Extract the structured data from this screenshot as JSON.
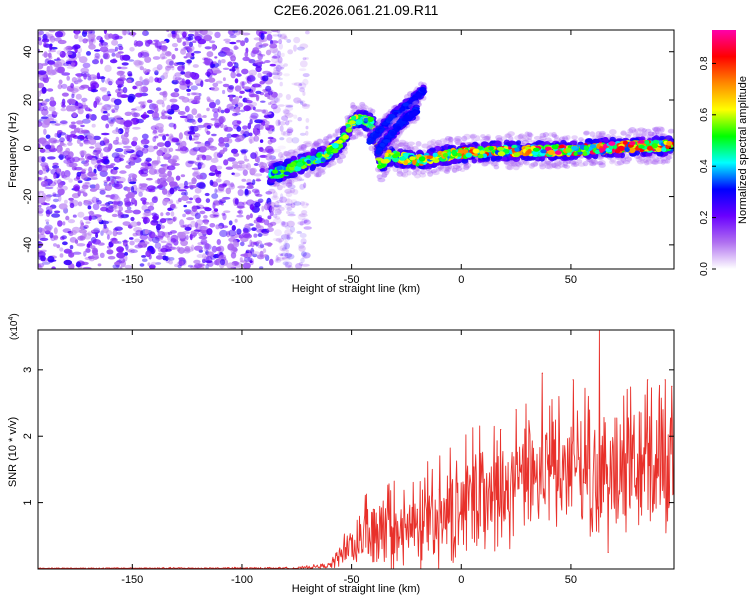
{
  "title": "C2E6.2026.061.21.09.R11",
  "chart_data": [
    {
      "type": "heatmap",
      "name": "spectrogram",
      "xlabel": "Height of straight line (km)",
      "ylabel": "Frequency (Hz)",
      "xlim": [
        -193,
        97
      ],
      "ylim": [
        -50,
        49
      ],
      "xticks": [
        -150,
        -100,
        -50,
        0,
        50
      ],
      "yticks": [
        -40,
        -20,
        0,
        20,
        40
      ],
      "xtick_labels": [
        "-150",
        "-100",
        "-50",
        "0",
        "50"
      ],
      "ytick_labels": [
        "-40",
        "-20",
        "0",
        "20",
        "40"
      ],
      "colorbar": {
        "label": "Normalized spectral amplitude",
        "range": [
          0,
          0.93
        ],
        "ticks": [
          0,
          0.2,
          0.4,
          0.6,
          0.8
        ],
        "tick_labels": [
          "0.0",
          "0.2",
          "0.4",
          "0.6",
          "0.8"
        ],
        "stops": [
          "#ffffff",
          "#b070f0",
          "#6a00ff",
          "#0000ff",
          "#00ffff",
          "#00ff00",
          "#ffff00",
          "#ff8800",
          "#ff0000",
          "#ff00aa"
        ]
      },
      "noise_region_x": [
        -193,
        -70
      ],
      "signal_track": [
        {
          "x": -87,
          "y": -11
        },
        {
          "x": -80,
          "y": -9
        },
        {
          "x": -72,
          "y": -6
        },
        {
          "x": -62,
          "y": -3
        },
        {
          "x": -55,
          "y": 2
        },
        {
          "x": -50,
          "y": 11
        },
        {
          "x": -45,
          "y": 12
        },
        {
          "x": -40,
          "y": 10
        },
        {
          "x": -37,
          "y": -7
        },
        {
          "x": -33,
          "y": -3
        },
        {
          "x": -20,
          "y": -5
        },
        {
          "x": 0,
          "y": -2
        },
        {
          "x": 20,
          "y": -1
        },
        {
          "x": 50,
          "y": -1
        },
        {
          "x": 80,
          "y": 1
        },
        {
          "x": 96,
          "y": 1
        }
      ],
      "branch_tracks": [
        [
          {
            "x": -42,
            "y": 3
          },
          {
            "x": -32,
            "y": 12
          },
          {
            "x": -22,
            "y": 20
          },
          {
            "x": -17,
            "y": 24
          }
        ],
        [
          {
            "x": -38,
            "y": -1
          },
          {
            "x": -28,
            "y": 10
          },
          {
            "x": -20,
            "y": 16
          }
        ]
      ]
    },
    {
      "type": "line",
      "name": "snr",
      "xlabel": "Height of straight line (km)",
      "ylabel": "SNR (10 * v/v)",
      "y_multiplier": "(x10",
      "y_multiplier_exp": "4",
      "y_multiplier_close": ")",
      "xlim": [
        -193,
        97
      ],
      "ylim": [
        0,
        3.6
      ],
      "xticks": [
        -150,
        -100,
        -50,
        0,
        50
      ],
      "yticks": [
        1,
        2,
        3
      ],
      "xtick_labels": [
        "-150",
        "-100",
        "-50",
        "0",
        "50"
      ],
      "ytick_labels": [
        "1",
        "2",
        "3"
      ],
      "color": "#e8302a",
      "envelope": [
        {
          "x": -193,
          "base": 0.01,
          "amp": 0.01
        },
        {
          "x": -75,
          "base": 0.01,
          "amp": 0.02
        },
        {
          "x": -60,
          "base": 0.05,
          "amp": 0.05
        },
        {
          "x": -55,
          "base": 0.2,
          "amp": 0.25
        },
        {
          "x": -45,
          "base": 0.4,
          "amp": 0.5
        },
        {
          "x": -20,
          "base": 0.5,
          "amp": 0.8
        },
        {
          "x": 0,
          "base": 0.8,
          "amp": 0.9
        },
        {
          "x": 25,
          "base": 1.1,
          "amp": 1.0
        },
        {
          "x": 50,
          "base": 1.3,
          "amp": 1.0
        },
        {
          "x": 97,
          "base": 1.4,
          "amp": 1.1
        }
      ],
      "peaks": [
        {
          "x": -51,
          "y": 0.45
        },
        {
          "x": -40,
          "y": 0.9
        },
        {
          "x": -20,
          "y": 0.9
        },
        {
          "x": -10,
          "y": 1.2
        },
        {
          "x": 18,
          "y": 2.1
        },
        {
          "x": 25,
          "y": 2.4
        },
        {
          "x": 37,
          "y": 2.95
        },
        {
          "x": 51,
          "y": 2.85
        },
        {
          "x": 56,
          "y": 1.3
        },
        {
          "x": 63,
          "y": 3.6
        },
        {
          "x": 67,
          "y": 0.25
        },
        {
          "x": 85,
          "y": 2.85
        },
        {
          "x": 93,
          "y": 2.85
        },
        {
          "x": 96,
          "y": 2.75
        }
      ]
    }
  ]
}
